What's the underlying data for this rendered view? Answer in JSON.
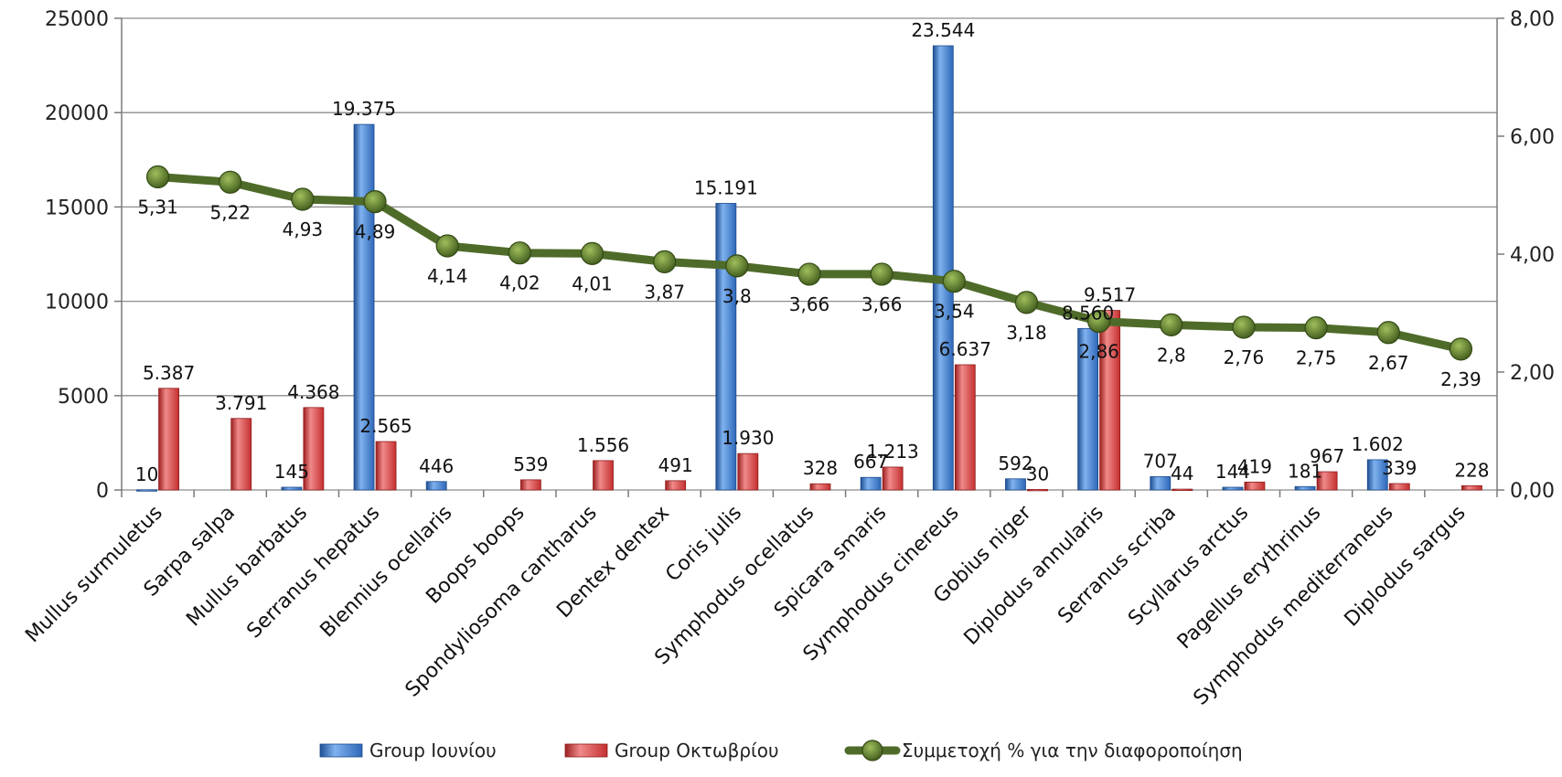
{
  "chart_data": {
    "type": "bar",
    "categories": [
      "Mullus surmuletus",
      "Sarpa salpa",
      "Mullus barbatus",
      "Serranus hepatus",
      "Blennius ocellaris",
      "Boops boops",
      "Spondyliosoma cantharus",
      "Dentex dentex",
      "Coris julis",
      "Symphodus ocellatus",
      "Spicara smaris",
      "Symphodus cinereus",
      "Gobius niger",
      "Diplodus annularis",
      "Serranus scriba",
      "Scyllarus arctus",
      "Pagellus erythrinus",
      "Symphodus mediterraneus",
      "Diplodus sargus"
    ],
    "series": [
      {
        "name": "Group Ιουνίου",
        "type": "bar",
        "axis": "left",
        "color": "#3a78c8",
        "values": [
          10,
          0,
          145,
          19375,
          446,
          0,
          0,
          0,
          15191,
          0,
          667,
          23544,
          592,
          8560,
          707,
          144,
          181,
          1602,
          0
        ],
        "labels": [
          "10",
          "",
          "145",
          "19.375",
          "446",
          "",
          "",
          "",
          "15.191",
          "",
          "667",
          "23.544",
          "592",
          "8.560",
          "707",
          "144",
          "181",
          "1.602",
          ""
        ]
      },
      {
        "name": "Group Οκτωβρίου",
        "type": "bar",
        "axis": "left",
        "color": "#d23b3b",
        "values": [
          5387,
          3791,
          4368,
          2565,
          0,
          539,
          1556,
          491,
          1930,
          328,
          1213,
          6637,
          30,
          9517,
          44,
          419,
          967,
          339,
          228
        ],
        "labels": [
          "5.387",
          "3.791",
          "4.368",
          "2.565",
          "",
          "539",
          "1.556",
          "491",
          "1.930",
          "328",
          "1.213",
          "6.637",
          "30",
          "9.517",
          "44",
          "419",
          "967",
          "339",
          "228"
        ]
      },
      {
        "name": "Συμμετοχή % για την διαφοροποίηση",
        "type": "line",
        "axis": "right",
        "color": "#4f6b2a",
        "values": [
          5.31,
          5.22,
          4.93,
          4.89,
          4.14,
          4.02,
          4.01,
          3.87,
          3.8,
          3.66,
          3.66,
          3.54,
          3.18,
          2.86,
          2.8,
          2.76,
          2.75,
          2.67,
          2.39
        ],
        "labels": [
          "5,31",
          "5,22",
          "4,93",
          "4,89",
          "4,14",
          "4,02",
          "4,01",
          "3,87",
          "3,8",
          "3,66",
          "3,66",
          "3,54",
          "3,18",
          "2,86",
          "2,8",
          "2,76",
          "2,75",
          "2,67",
          "2,39"
        ]
      }
    ],
    "y_left": {
      "min": 0,
      "max": 25000,
      "ticks": [
        "0",
        "5000",
        "10000",
        "15000",
        "20000",
        "25000"
      ]
    },
    "y_right": {
      "min": 0,
      "max": 8,
      "ticks": [
        "0,00",
        "2,00",
        "4,00",
        "6,00",
        "8,00"
      ]
    },
    "legend": [
      "Group Ιουνίου",
      "Group Οκτωβρίου",
      "Συμμετοχή % για την διαφοροποίηση"
    ],
    "legend_position": "bottom",
    "grid": "horizontal"
  }
}
